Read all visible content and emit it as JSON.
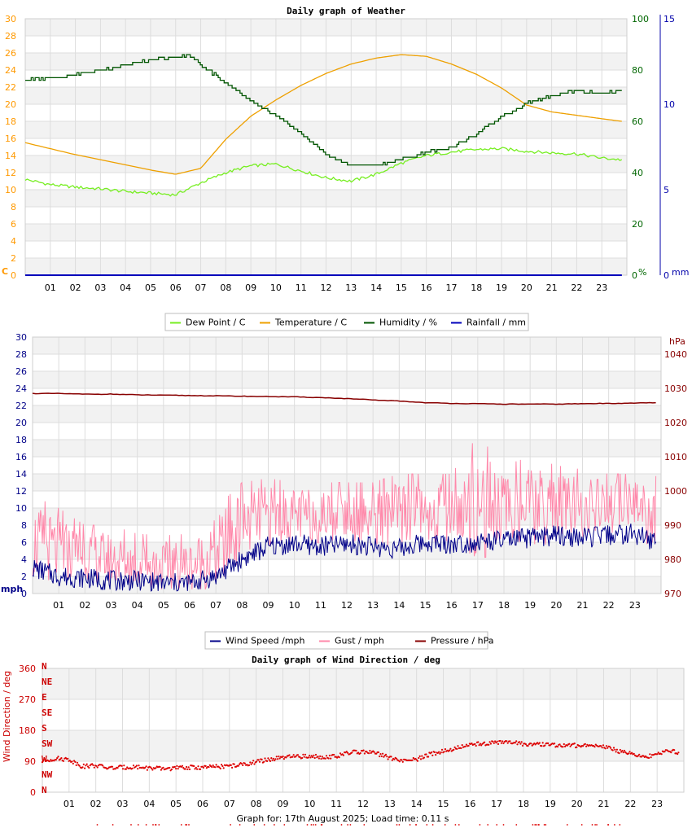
{
  "chart_data": [
    {
      "type": "line",
      "title": "Daily graph of Weather",
      "hours": [
        "01",
        "02",
        "03",
        "04",
        "05",
        "06",
        "07",
        "08",
        "09",
        "10",
        "11",
        "12",
        "13",
        "14",
        "15",
        "16",
        "17",
        "18",
        "19",
        "20",
        "21",
        "22",
        "23"
      ],
      "axes": {
        "temp": {
          "unit": "C",
          "ticks": [
            0,
            2,
            4,
            6,
            8,
            10,
            12,
            14,
            16,
            18,
            20,
            22,
            24,
            26,
            28,
            30
          ],
          "color": "#ff9900"
        },
        "humidity": {
          "unit": "%",
          "ticks": [
            0,
            20,
            40,
            60,
            80,
            100
          ],
          "color": "#006600"
        },
        "rain": {
          "unit": "mm",
          "ticks": [
            0,
            5,
            10,
            15
          ],
          "color": "#0000aa"
        }
      },
      "legend": [
        {
          "name": "Dew Point / C",
          "color": "#77ee22"
        },
        {
          "name": "Temperature / C",
          "color": "#eea000"
        },
        {
          "name": "Humidity / %",
          "color": "#005500"
        },
        {
          "name": "Rainfall / mm",
          "color": "#0000bb"
        }
      ],
      "series": [
        {
          "name": "Dew Point / C",
          "x": [
            0,
            1,
            2,
            3,
            4,
            5,
            6,
            7,
            8,
            9,
            10,
            11,
            12,
            13,
            14,
            15,
            16,
            17,
            18,
            19,
            20,
            21,
            22,
            23,
            23.8
          ],
          "values": [
            11.2,
            10.6,
            10.3,
            10.1,
            9.8,
            9.6,
            9.4,
            10.8,
            12,
            12.8,
            13,
            12.2,
            11.4,
            11,
            11.8,
            13.1,
            14,
            14.4,
            14.7,
            14.8,
            14.5,
            14.3,
            14.2,
            13.7,
            13.5
          ]
        },
        {
          "name": "Temperature / C",
          "x": [
            0,
            1,
            2,
            3,
            4,
            5,
            6,
            7,
            8,
            9,
            10,
            11,
            12,
            13,
            14,
            15,
            16,
            17,
            18,
            19,
            20,
            21,
            22,
            23,
            23.8
          ],
          "values": [
            15.5,
            14.8,
            14.1,
            13.5,
            12.9,
            12.3,
            11.8,
            12.5,
            15.9,
            18.6,
            20.5,
            22.2,
            23.6,
            24.7,
            25.4,
            25.8,
            25.6,
            24.7,
            23.5,
            21.9,
            19.9,
            19.1,
            18.7,
            18.3,
            18
          ]
        },
        {
          "name": "Humidity / %",
          "x": [
            0,
            1,
            2,
            3,
            4,
            5,
            6,
            6.5,
            7,
            8,
            9,
            10,
            11,
            12,
            13,
            14,
            15,
            16,
            17,
            18,
            19,
            20,
            21,
            22,
            23,
            23.8
          ],
          "values": [
            76,
            77,
            78,
            80,
            82,
            84,
            85,
            86,
            82,
            75,
            68,
            62,
            55,
            47,
            43,
            43,
            45,
            48,
            50,
            55,
            62,
            67,
            70,
            72,
            71,
            72
          ]
        },
        {
          "name": "Rainfall / mm",
          "x": [
            0,
            23.8
          ],
          "values": [
            0,
            0
          ]
        }
      ]
    },
    {
      "type": "line",
      "title": "",
      "hours": [
        "01",
        "02",
        "03",
        "04",
        "05",
        "06",
        "07",
        "08",
        "09",
        "10",
        "11",
        "12",
        "13",
        "14",
        "15",
        "16",
        "17",
        "18",
        "19",
        "20",
        "21",
        "22",
        "23"
      ],
      "axes": {
        "wind": {
          "unit": "mph",
          "ticks": [
            0,
            2,
            4,
            6,
            8,
            10,
            12,
            14,
            16,
            18,
            20,
            22,
            24,
            26,
            28,
            30
          ],
          "color": "#0000aa"
        },
        "pressure": {
          "unit": "hPa",
          "ticks": [
            970,
            980,
            990,
            1000,
            1010,
            1020,
            1030,
            1040
          ],
          "color": "#880000"
        }
      },
      "legend": [
        {
          "name": "Wind Speed /mph",
          "color": "#000088"
        },
        {
          "name": "Gust / mph",
          "color": "#ff88aa"
        },
        {
          "name": "Pressure / hPa",
          "color": "#880000"
        }
      ],
      "series": [
        {
          "name": "Wind Speed /mph",
          "x": [
            0,
            1,
            2,
            3,
            4,
            5,
            6,
            7,
            8,
            9,
            10,
            11,
            12,
            13,
            14,
            15,
            16,
            17,
            18,
            19,
            20,
            21,
            22,
            23,
            23.8
          ],
          "values": [
            3,
            2,
            1.8,
            1.5,
            1.5,
            1.2,
            1.2,
            2,
            4,
            5.5,
            5.8,
            5.5,
            5.8,
            5.5,
            5.2,
            6,
            5.8,
            6,
            6.2,
            6.5,
            6.8,
            6.5,
            6.8,
            7,
            6
          ]
        },
        {
          "name": "Gust / mph",
          "x": [
            0,
            1,
            2,
            3,
            4,
            5,
            6,
            7,
            8,
            9,
            10,
            11,
            12,
            13,
            14,
            15,
            16,
            17,
            18,
            19,
            20,
            21,
            22,
            23,
            23.8
          ],
          "values": [
            6,
            5,
            4.5,
            4,
            3.5,
            3.2,
            3.2,
            4.5,
            8,
            9,
            9.2,
            9,
            9.2,
            9,
            9,
            9.5,
            9.5,
            9.8,
            10,
            10,
            10,
            10,
            10,
            10.5,
            9
          ],
          "max": [
            11.5,
            10,
            8,
            8,
            7,
            6.8,
            7,
            10,
            13,
            13.5,
            13,
            13,
            13,
            13,
            14,
            14,
            14,
            18.5,
            15,
            16,
            15,
            14.5,
            14,
            14,
            16
          ]
        },
        {
          "name": "Pressure / hPa",
          "x": [
            0,
            1,
            2,
            3,
            4,
            5,
            6,
            7,
            8,
            9,
            10,
            11,
            12,
            13,
            14,
            15,
            16,
            17,
            18,
            19,
            20,
            21,
            22,
            23,
            23.8
          ],
          "values": [
            1028.5,
            1028.5,
            1028.3,
            1028.3,
            1028.1,
            1028,
            1027.9,
            1027.8,
            1027.7,
            1027.6,
            1027.5,
            1027.3,
            1027,
            1026.6,
            1026.3,
            1025.8,
            1025.6,
            1025.5,
            1025.4,
            1025.4,
            1025.4,
            1025.5,
            1025.6,
            1025.7,
            1025.8
          ]
        }
      ]
    },
    {
      "type": "scatter",
      "title": "Daily graph of Wind Direction / deg",
      "ylabel": "Wind Direction / deg",
      "hours": [
        "01",
        "02",
        "03",
        "04",
        "05",
        "06",
        "07",
        "08",
        "09",
        "10",
        "11",
        "12",
        "13",
        "14",
        "15",
        "16",
        "17",
        "18",
        "19",
        "20",
        "21",
        "22",
        "23"
      ],
      "yticks": [
        0,
        90,
        180,
        270,
        360
      ],
      "compass": [
        "N",
        "NE",
        "E",
        "SE",
        "S",
        "SW",
        "W",
        "NW",
        "N"
      ],
      "series": [
        {
          "name": "Wind Direction / deg",
          "x": [
            0,
            0.5,
            1,
            1.5,
            2,
            2.5,
            3,
            3.5,
            4,
            4.5,
            5,
            5.5,
            6,
            6.5,
            7,
            7.5,
            8,
            8.5,
            9,
            9.5,
            10,
            10.5,
            11,
            11.5,
            12,
            12.5,
            13,
            13.5,
            14,
            14.5,
            15,
            15.5,
            16,
            16.5,
            17,
            17.5,
            18,
            18.5,
            19,
            19.5,
            20,
            20.5,
            21,
            21.5,
            22,
            22.5,
            23,
            23.5,
            23.8
          ],
          "values": [
            90,
            98,
            95,
            75,
            78,
            70,
            72,
            74,
            70,
            68,
            70,
            72,
            72,
            74,
            76,
            80,
            88,
            95,
            100,
            104,
            104,
            103,
            104,
            115,
            118,
            112,
            100,
            90,
            95,
            110,
            120,
            128,
            138,
            142,
            145,
            145,
            140,
            138,
            138,
            136,
            136,
            138,
            134,
            120,
            115,
            100,
            112,
            120,
            115
          ]
        }
      ]
    }
  ],
  "footer": "Graph for: 17th August 2025; Load time: 0.11 s"
}
